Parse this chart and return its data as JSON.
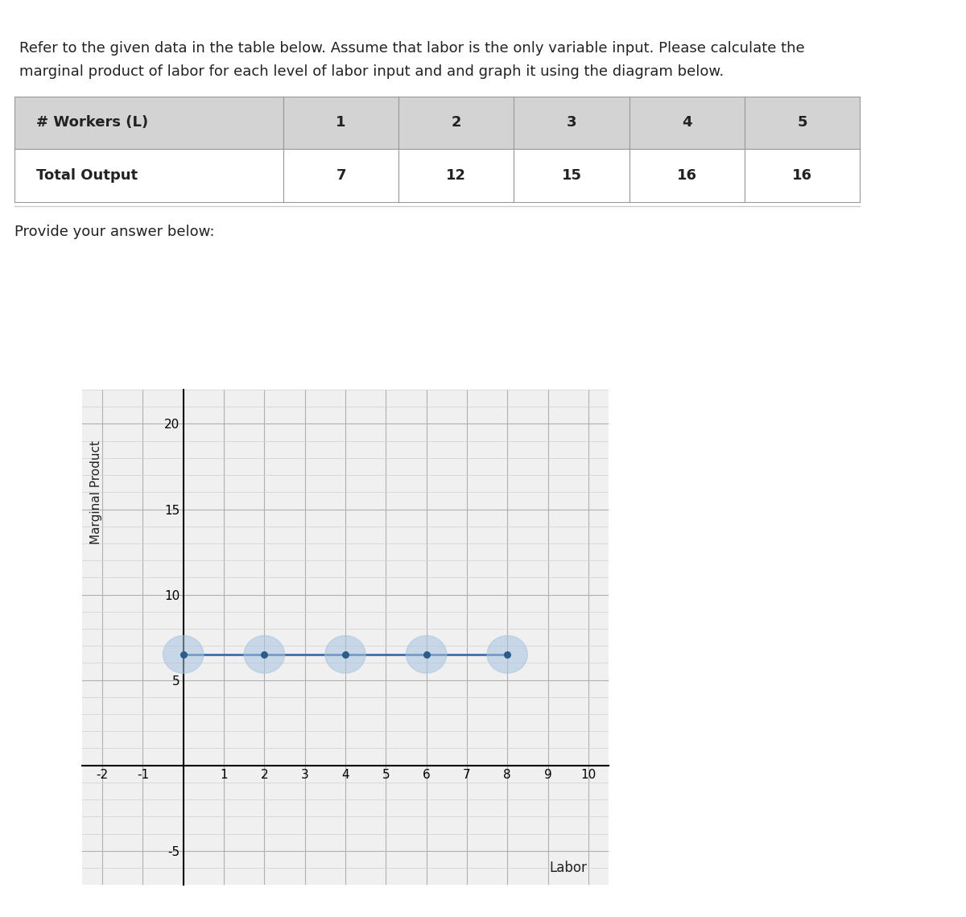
{
  "title_text1": "Refer to the given data in the table below. Assume that labor is the only variable input. Please calculate the",
  "title_text2": "marginal product of labor for each level of labor input and and graph it using the diagram below.",
  "table_header": [
    "# Workers (L)",
    "1",
    "2",
    "3",
    "4",
    "5"
  ],
  "table_row": [
    "Total Output",
    "7",
    "12",
    "15",
    "16",
    "16"
  ],
  "provide_text": "Provide your answer below:",
  "xlim": [
    -2.5,
    10.5
  ],
  "ylim": [
    -7,
    22
  ],
  "xticks": [
    -2,
    -1,
    0,
    1,
    2,
    3,
    4,
    5,
    6,
    7,
    8,
    9,
    10
  ],
  "yticks": [
    -5,
    0,
    5,
    10,
    15,
    20
  ],
  "xlabel": "Labor",
  "ylabel": "Marginal Product",
  "point_x": [
    0,
    2,
    4,
    6,
    8
  ],
  "point_y": [
    6.5,
    6.5,
    6.5,
    6.5,
    6.5
  ],
  "line_color": "#3a6fa8",
  "point_color": "#2b5c8a",
  "point_halo_color": "#a8c4e0",
  "grid_minor_color": "#d0d0d0",
  "grid_major_color": "#b0b0b0",
  "table_header_bg": "#d3d3d3",
  "table_data_bg": "#ffffff",
  "axis_line_color": "#000000",
  "figure_bg": "#ffffff",
  "plot_bg": "#f0f0f0",
  "separator_color": "#cccccc"
}
